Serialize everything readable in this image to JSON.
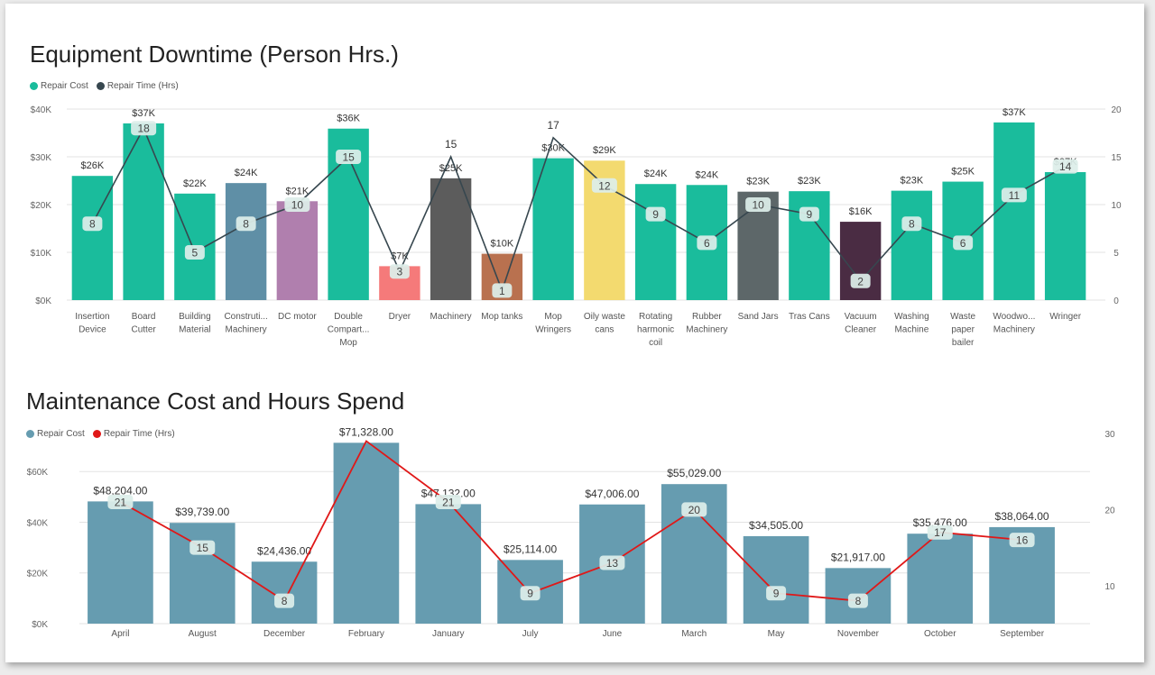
{
  "colors": {
    "teal": "#1abc9c",
    "slate": "#5f8fa6",
    "purple": "#b07fae",
    "salmon": "#f57a7a",
    "darkgray": "#5c5c5c",
    "brown": "#b9714f",
    "yellow": "#f3da6f",
    "darkslate": "#5d6769",
    "plum": "#4a2c43",
    "blue2": "#669cb0",
    "line1": "#37474f",
    "line2": "#e01818"
  },
  "chart_data": [
    {
      "type": "bar",
      "title": "Equipment Downtime (Person Hrs.)",
      "legend": [
        {
          "name": "Repair Cost",
          "color": "#1abc9c"
        },
        {
          "name": "Repair Time (Hrs)",
          "color": "#37474f"
        }
      ],
      "ylim": [
        0,
        40000
      ],
      "y_ticks": [
        "$0K",
        "$10K",
        "$20K",
        "$30K",
        "$40K"
      ],
      "y2lim": [
        0,
        20
      ],
      "y2_ticks": [
        "0",
        "5",
        "10",
        "15",
        "20"
      ],
      "categories": [
        [
          "Insertion",
          "Device"
        ],
        [
          "Board",
          "Cutter"
        ],
        [
          "Building",
          "Material"
        ],
        [
          "Construti...",
          "Machinery"
        ],
        [
          "DC motor"
        ],
        [
          "Double",
          "Compart...",
          "Mop"
        ],
        [
          "Dryer"
        ],
        [
          "Machinery"
        ],
        [
          "Mop tanks"
        ],
        [
          "Mop",
          "Wringers"
        ],
        [
          "Oily waste",
          "cans"
        ],
        [
          "Rotating",
          "harmonic",
          "coil"
        ],
        [
          "Rubber",
          "Machinery"
        ],
        [
          "Sand Jars"
        ],
        [
          "Tras Cans"
        ],
        [
          "Vacuum",
          "Cleaner"
        ],
        [
          "Washing",
          "Machine"
        ],
        [
          "Waste",
          "paper",
          "bailer"
        ],
        [
          "Woodwo...",
          "Machinery"
        ],
        [
          "Wringer"
        ]
      ],
      "values": [
        26000,
        37000,
        22300,
        24500,
        20700,
        35900,
        7100,
        25500,
        9700,
        29700,
        29200,
        24300,
        24100,
        22700,
        22800,
        16400,
        22900,
        24800,
        37200,
        26800
      ],
      "value_labels": [
        "$26K",
        "$37K",
        "$22K",
        "$24K",
        "$21K",
        "$36K",
        "$7K",
        "$25K",
        "$10K",
        "$30K",
        "$29K",
        "$24K",
        "$24K",
        "$23K",
        "$23K",
        "$16K",
        "$23K",
        "$25K",
        "$37K",
        "$27K"
      ],
      "bar_colors": [
        "teal",
        "teal",
        "teal",
        "slate",
        "purple",
        "teal",
        "salmon",
        "darkgray",
        "brown",
        "teal",
        "yellow",
        "teal",
        "teal",
        "darkslate",
        "teal",
        "plum",
        "teal",
        "teal",
        "teal",
        "teal"
      ],
      "line": {
        "name": "Repair Time (Hrs)",
        "values": [
          8,
          18,
          5,
          8,
          10,
          15,
          3,
          15,
          1,
          17,
          12,
          9,
          6,
          10,
          9,
          2,
          8,
          6,
          11,
          14
        ],
        "labels": [
          "8",
          "18",
          "5",
          "8",
          "10",
          "15",
          "3",
          "15",
          "1",
          "17",
          "12",
          "9",
          "6",
          "10",
          "9",
          "2",
          "8",
          "6",
          "11",
          "14"
        ],
        "bubble": [
          true,
          true,
          true,
          true,
          true,
          true,
          true,
          false,
          true,
          false,
          true,
          true,
          true,
          true,
          true,
          true,
          true,
          true,
          true,
          true
        ]
      }
    },
    {
      "type": "bar",
      "title": "Maintenance Cost and Hours Spend",
      "legend": [
        {
          "name": "Repair Cost",
          "color": "#669cb0"
        },
        {
          "name": "Repair Time (Hrs)",
          "color": "#e01818"
        }
      ],
      "ylim": [
        0,
        75000
      ],
      "y_ticks": [
        "$0K",
        "$20K",
        "$40K",
        "$60K"
      ],
      "y_tick_values": [
        0,
        20000,
        40000,
        60000
      ],
      "y2lim": [
        5,
        30
      ],
      "y2_ticks": [
        "10",
        "20",
        "30"
      ],
      "y2_tick_values": [
        10,
        20,
        30
      ],
      "categories": [
        "April",
        "August",
        "December",
        "February",
        "January",
        "July",
        "June",
        "March",
        "May",
        "November",
        "October",
        "September"
      ],
      "values": [
        48204,
        39739,
        24436,
        71328,
        47132,
        25114,
        47006,
        55029,
        34505,
        21917,
        35476,
        38064
      ],
      "value_labels": [
        "$48,204.00",
        "$39,739.00",
        "$24,436.00",
        "$71,328.00",
        "$47,132.00",
        "$25,114.00",
        "$47,006.00",
        "$55,029.00",
        "$34,505.00",
        "$21,917.00",
        "$35,476.00",
        "$38,064.00"
      ],
      "line": {
        "name": "Repair Time (Hrs)",
        "values": [
          21,
          15,
          8,
          29,
          21,
          9,
          13,
          20,
          9,
          8,
          17,
          16
        ],
        "labels": [
          "21",
          "15",
          "8",
          "",
          "21",
          "9",
          "13",
          "20",
          "9",
          "8",
          "17",
          "16"
        ]
      }
    }
  ]
}
